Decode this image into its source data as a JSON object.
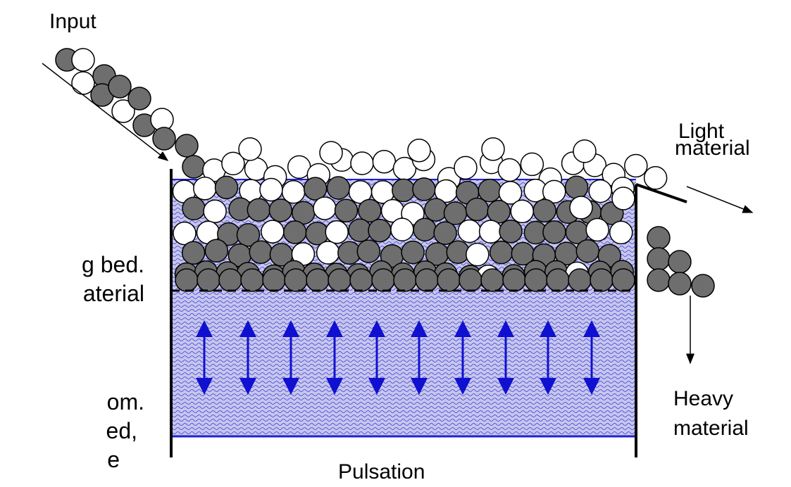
{
  "labels": {
    "input": "Input",
    "light": [
      "Light",
      "material"
    ],
    "heavy": [
      "Heavy",
      "material"
    ],
    "pulsation": "Pulsation"
  },
  "side_text": [
    "g bed.",
    "aterial",
    "om.",
    "ed,",
    "e"
  ]
}
